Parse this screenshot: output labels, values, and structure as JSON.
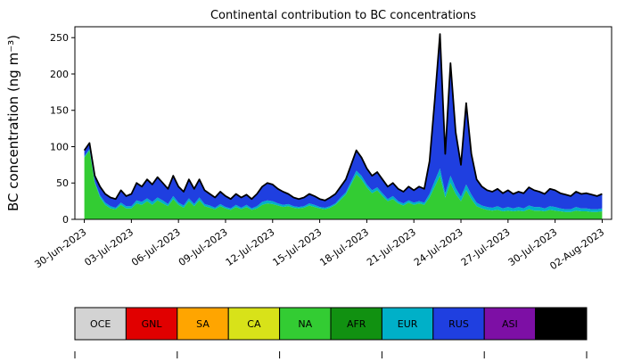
{
  "figure": {
    "title": "Continental contribution to BC concentrations",
    "ylabel": "BC concentration (ng m⁻³)"
  },
  "chart_data": {
    "type": "area",
    "stacked": true,
    "title": "Continental contribution to BC concentrations",
    "xlabel": "",
    "ylabel": "BC concentration (ng m⁻³)",
    "grid": false,
    "legend_position": "bottom-colorbar",
    "ylim": [
      0,
      265
    ],
    "xlim": [
      -0.6,
      33.6
    ],
    "y_ticks": [
      0,
      50,
      100,
      150,
      200,
      250
    ],
    "x_ticks": [
      {
        "pos": 0,
        "label": "30-Jun-2023"
      },
      {
        "pos": 3,
        "label": "03-Jul-2023"
      },
      {
        "pos": 6,
        "label": "06-Jul-2023"
      },
      {
        "pos": 9,
        "label": "09-Jul-2023"
      },
      {
        "pos": 12,
        "label": "12-Jul-2023"
      },
      {
        "pos": 15,
        "label": "15-Jul-2023"
      },
      {
        "pos": 18,
        "label": "18-Jul-2023"
      },
      {
        "pos": 21,
        "label": "21-Jul-2023"
      },
      {
        "pos": 24,
        "label": "24-Jul-2023"
      },
      {
        "pos": 27,
        "label": "27-Jul-2023"
      },
      {
        "pos": 30,
        "label": "30-Jul-2023"
      },
      {
        "pos": 33,
        "label": "02-Aug-2023"
      }
    ],
    "x_start": 0,
    "x_step": 0.33333,
    "x_unit": "days since 30-Jun-2023",
    "total_line_color": "#000000",
    "series": [
      {
        "name": "NA",
        "color": "#33cc33",
        "values": [
          85,
          95,
          50,
          30,
          20,
          15,
          14,
          20,
          15,
          15,
          22,
          20,
          25,
          20,
          26,
          22,
          18,
          28,
          20,
          16,
          25,
          18,
          26,
          18,
          16,
          14,
          18,
          15,
          13,
          17,
          14,
          17,
          13,
          15,
          20,
          22,
          21,
          19,
          17,
          18,
          16,
          15,
          16,
          19,
          17,
          15,
          14,
          16,
          20,
          27,
          34,
          48,
          62,
          55,
          44,
          36,
          40,
          32,
          25,
          28,
          22,
          19,
          23,
          20,
          22,
          20,
          30,
          45,
          60,
          30,
          50,
          35,
          25,
          40,
          28,
          18,
          15,
          13,
          12,
          13,
          11,
          12,
          11,
          12,
          11,
          14,
          12,
          12,
          11,
          13,
          12,
          11,
          10,
          10,
          12,
          11,
          11,
          10,
          10,
          11
        ]
      },
      {
        "name": "EUR",
        "color": "#00b0c8",
        "values": [
          2,
          2,
          2,
          3,
          3,
          3,
          2,
          3,
          3,
          3,
          4,
          4,
          4,
          4,
          4,
          4,
          3,
          4,
          3,
          3,
          4,
          3,
          4,
          3,
          3,
          2,
          3,
          2,
          2,
          3,
          2,
          3,
          2,
          3,
          4,
          4,
          4,
          3,
          3,
          3,
          2,
          2,
          2,
          3,
          3,
          2,
          2,
          2,
          2,
          3,
          3,
          4,
          5,
          5,
          4,
          4,
          4,
          4,
          3,
          4,
          3,
          3,
          3,
          3,
          3,
          3,
          5,
          8,
          10,
          6,
          10,
          8,
          6,
          8,
          6,
          5,
          4,
          4,
          4,
          5,
          4,
          5,
          4,
          5,
          4,
          5,
          5,
          5,
          4,
          5,
          5,
          4,
          4,
          4,
          5,
          4,
          4,
          4,
          4,
          4
        ]
      },
      {
        "name": "RUS",
        "color": "#1f3fe0",
        "values": [
          8,
          8,
          8,
          12,
          12,
          12,
          12,
          17,
          14,
          17,
          24,
          21,
          26,
          24,
          28,
          24,
          21,
          28,
          22,
          19,
          26,
          21,
          25,
          19,
          16,
          14,
          17,
          15,
          13,
          15,
          14,
          14,
          13,
          17,
          21,
          24,
          23,
          20,
          18,
          14,
          12,
          11,
          12,
          13,
          12,
          11,
          10,
          12,
          13,
          15,
          18,
          23,
          28,
          25,
          22,
          20,
          21,
          19,
          17,
          18,
          17,
          16,
          19,
          17,
          20,
          19,
          45,
          112,
          185,
          54,
          155,
          77,
          44,
          112,
          56,
          32,
          26,
          23,
          22,
          24,
          21,
          23,
          20,
          21,
          21,
          25,
          23,
          21,
          20,
          24,
          23,
          21,
          20,
          18,
          21,
          20,
          21,
          20,
          18,
          20
        ]
      }
    ],
    "other_series_near_zero": [
      "OCE",
      "GNL",
      "SA",
      "CA",
      "AFR",
      "ASI",
      "AUS"
    ],
    "legend": [
      {
        "label": "OCE",
        "color": "#d3d3d3",
        "text_color": "#000000"
      },
      {
        "label": "GNL",
        "color": "#e10000",
        "text_color": "#000000"
      },
      {
        "label": "SA",
        "color": "#ffa500",
        "text_color": "#000000"
      },
      {
        "label": "CA",
        "color": "#d8e219",
        "text_color": "#000000"
      },
      {
        "label": "NA",
        "color": "#33cc33",
        "text_color": "#000000"
      },
      {
        "label": "AFR",
        "color": "#119111",
        "text_color": "#000000"
      },
      {
        "label": "EUR",
        "color": "#00b0c8",
        "text_color": "#000000"
      },
      {
        "label": "RUS",
        "color": "#1f3fe0",
        "text_color": "#000000"
      },
      {
        "label": "ASI",
        "color": "#7d0fa5",
        "text_color": "#ffffff"
      },
      {
        "label": "AUS",
        "color": "#000000",
        "text_color": "#ffffff"
      }
    ]
  }
}
